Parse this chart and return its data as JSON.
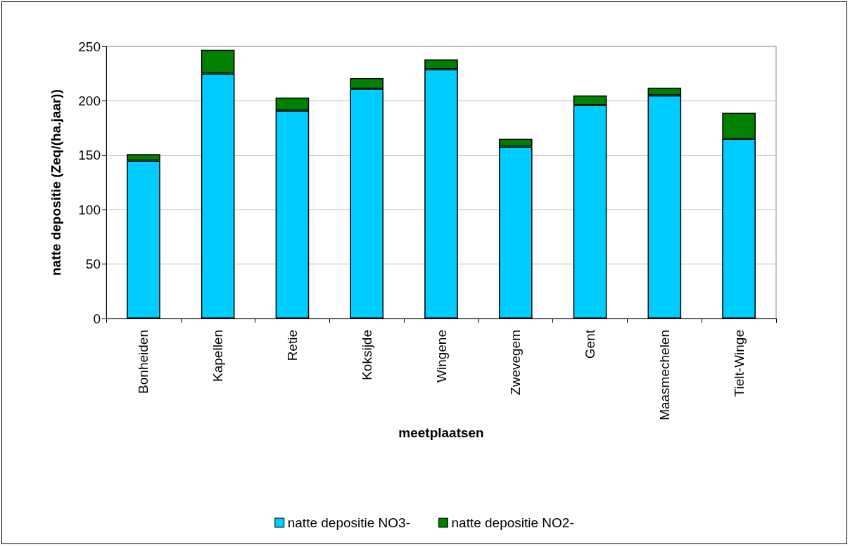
{
  "chart_data": {
    "type": "bar",
    "stacked": true,
    "xlabel": "meetplaatsen",
    "ylabel": "natte depositie (Zeq/(ha.jaar))",
    "categories": [
      "Bonheiden",
      "Kapellen",
      "Retie",
      "Koksijde",
      "Wingene",
      "Zwevegem",
      "Gent",
      "Maasmechelen",
      "Tielt-Winge"
    ],
    "series": [
      {
        "name": "natte depositie NO3-",
        "color": "#00ccff",
        "values": [
          145,
          225,
          191,
          211,
          229,
          158,
          196,
          205,
          165
        ]
      },
      {
        "name": "natte depositie NO2-",
        "color": "#008000",
        "values": [
          6,
          22,
          12,
          10,
          9,
          7,
          9,
          7,
          24
        ]
      }
    ],
    "ylim": [
      0,
      250
    ],
    "yticks": [
      0,
      50,
      100,
      150,
      200,
      250
    ],
    "grid": "y",
    "legend": "bottom"
  }
}
